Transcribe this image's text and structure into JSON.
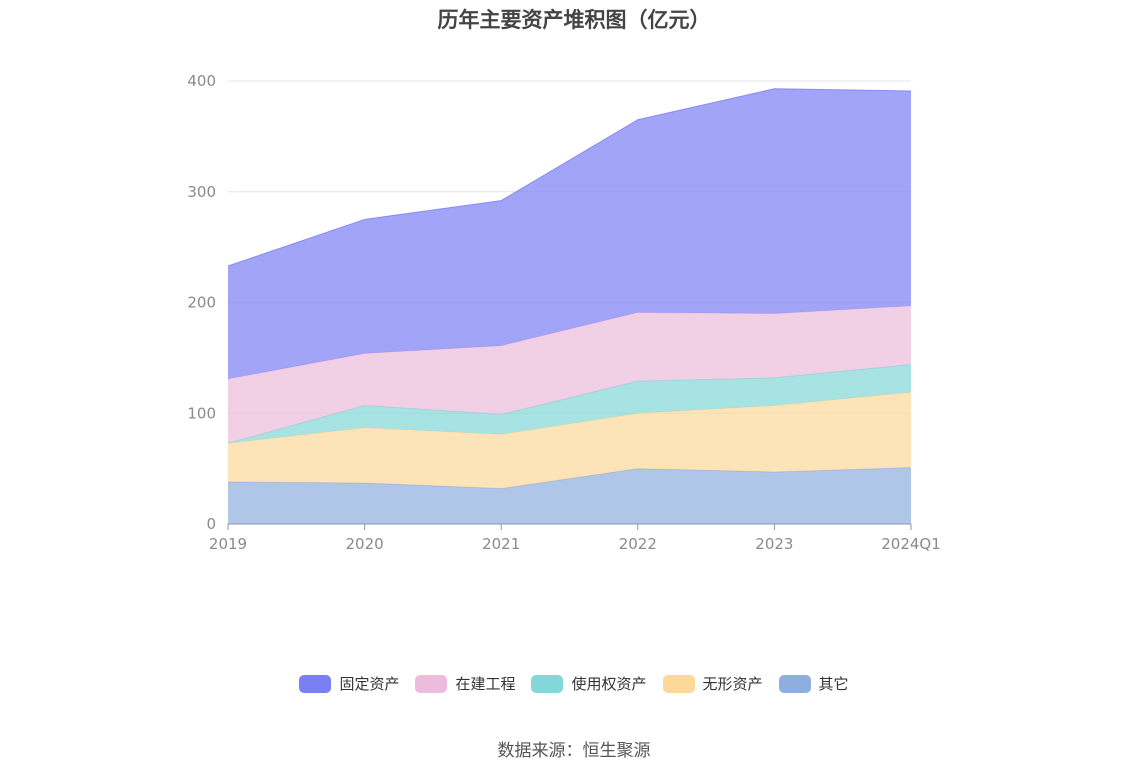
{
  "chart_data": {
    "type": "area",
    "stacked": true,
    "title": "历年主要资产堆积图（亿元）",
    "categories": [
      "2019",
      "2020",
      "2021",
      "2022",
      "2023",
      "2024Q1"
    ],
    "ylim": [
      0,
      400
    ],
    "yticks": [
      0,
      100,
      200,
      300,
      400
    ],
    "grid": true,
    "legend_position": "bottom",
    "series": [
      {
        "name": "其它",
        "color": "#8eaee0",
        "values": [
          38,
          37,
          32,
          50,
          47,
          51
        ]
      },
      {
        "name": "无形资产",
        "color": "#fcd89a",
        "values": [
          35,
          50,
          49,
          50,
          60,
          68
        ]
      },
      {
        "name": "使用权资产",
        "color": "#83d7d9",
        "values": [
          0,
          20,
          18,
          29,
          25,
          25
        ]
      },
      {
        "name": "在建工程",
        "color": "#ebbcdc",
        "values": [
          58,
          47,
          62,
          62,
          58,
          53
        ]
      },
      {
        "name": "固定资产",
        "color": "#7b7ff4",
        "values": [
          102,
          121,
          131,
          174,
          203,
          194
        ]
      }
    ]
  },
  "legend_order": [
    "固定资产",
    "在建工程",
    "使用权资产",
    "无形资产",
    "其它"
  ],
  "source": "数据来源：恒生聚源"
}
